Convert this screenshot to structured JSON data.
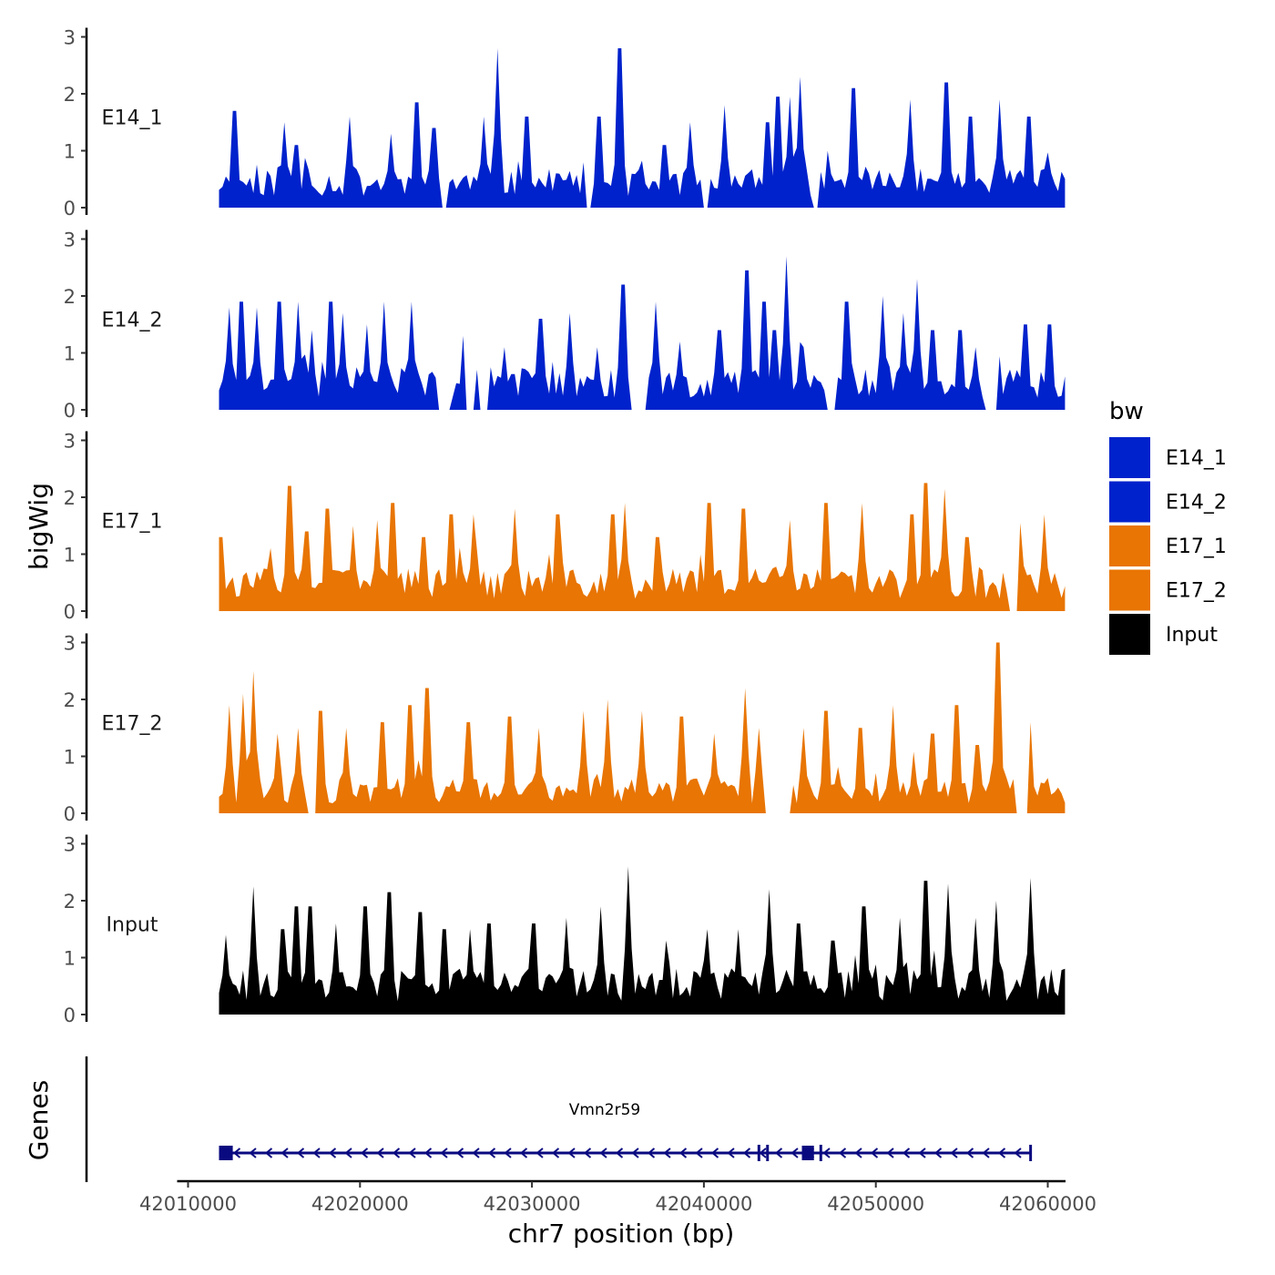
{
  "chart_data": {
    "type": "area",
    "ylabel": "bigWig",
    "xlabel": "chr7 position (bp)",
    "genes_label": "Genes",
    "xlim": [
      42008000,
      42064000
    ],
    "ylim": [
      0,
      3
    ],
    "x_ticks": [
      42010000,
      42020000,
      42030000,
      42040000,
      42050000,
      42060000
    ],
    "x_tick_labels": [
      "42010000",
      "42020000",
      "42030000",
      "42040000",
      "42050000",
      "42060000"
    ],
    "y_ticks": [
      0,
      1,
      2,
      3
    ],
    "y_tick_labels": [
      "0",
      "1",
      "2",
      "3"
    ],
    "data_range": [
      42011800,
      42061000
    ],
    "legend": {
      "title": "bw",
      "position": "right",
      "entries": [
        {
          "label": "E14_1",
          "color": "#0022CC"
        },
        {
          "label": "E14_2",
          "color": "#0022CC"
        },
        {
          "label": "E17_1",
          "color": "#E87504"
        },
        {
          "label": "E17_2",
          "color": "#E87504"
        },
        {
          "label": "Input",
          "color": "#000000"
        }
      ]
    },
    "series": [
      {
        "name": "E14_1",
        "color": "#0022CC",
        "mean": 0.55,
        "seed": 11,
        "gaps": [
          [
            42024800,
            42025100
          ],
          [
            42033200,
            42033500
          ],
          [
            42039900,
            42040300
          ],
          [
            42046300,
            42046700
          ]
        ],
        "peaks": [
          [
            42012700,
            1.7
          ],
          [
            42015600,
            1.5
          ],
          [
            42016300,
            1.1
          ],
          [
            42019400,
            1.6
          ],
          [
            42021800,
            1.3
          ],
          [
            42023300,
            1.85
          ],
          [
            42024300,
            1.4
          ],
          [
            42027200,
            1.6
          ],
          [
            42028000,
            2.8
          ],
          [
            42029700,
            1.6
          ],
          [
            42033900,
            1.6
          ],
          [
            42035100,
            2.8
          ],
          [
            42037700,
            1.1
          ],
          [
            42039200,
            1.5
          ],
          [
            42040000,
            1.1
          ],
          [
            42041200,
            1.8
          ],
          [
            42043700,
            1.5
          ],
          [
            42044300,
            1.95
          ],
          [
            42045000,
            1.95
          ],
          [
            42045600,
            2.3
          ],
          [
            42048700,
            2.1
          ],
          [
            42052000,
            1.9
          ],
          [
            42054100,
            2.2
          ],
          [
            42055500,
            1.6
          ],
          [
            42057200,
            1.9
          ],
          [
            42058900,
            1.6
          ]
        ]
      },
      {
        "name": "E14_2",
        "color": "#0022CC",
        "mean": 0.6,
        "seed": 23,
        "gaps": [
          [
            42024500,
            42025200
          ],
          [
            42026200,
            42026700
          ],
          [
            42027000,
            42027500
          ],
          [
            42035800,
            42036600
          ],
          [
            42047200,
            42047700
          ],
          [
            42056300,
            42057000
          ]
        ],
        "peaks": [
          [
            42012400,
            1.8
          ],
          [
            42013100,
            1.9
          ],
          [
            42014000,
            1.8
          ],
          [
            42015300,
            1.9
          ],
          [
            42016400,
            1.9
          ],
          [
            42017200,
            1.4
          ],
          [
            42018300,
            1.9
          ],
          [
            42019000,
            1.7
          ],
          [
            42020400,
            1.5
          ],
          [
            42021400,
            1.9
          ],
          [
            42023000,
            1.9
          ],
          [
            42026100,
            1.3
          ],
          [
            42028400,
            1.1
          ],
          [
            42030500,
            1.6
          ],
          [
            42032200,
            1.7
          ],
          [
            42033800,
            1.1
          ],
          [
            42035300,
            2.2
          ],
          [
            42037200,
            1.9
          ],
          [
            42038600,
            1.2
          ],
          [
            42040900,
            1.4
          ],
          [
            42042500,
            2.45
          ],
          [
            42043500,
            1.9
          ],
          [
            42044100,
            1.4
          ],
          [
            42044800,
            2.7
          ],
          [
            42045700,
            1.1
          ],
          [
            42048300,
            1.9
          ],
          [
            42050400,
            2.0
          ],
          [
            42051600,
            1.7
          ],
          [
            42052400,
            2.3
          ],
          [
            42053300,
            1.4
          ],
          [
            42054900,
            1.4
          ],
          [
            42055800,
            1.1
          ],
          [
            42058700,
            1.5
          ],
          [
            42060100,
            1.5
          ]
        ]
      },
      {
        "name": "E17_1",
        "color": "#E87504",
        "mean": 0.6,
        "seed": 37,
        "gaps": [
          [
            42057800,
            42058300
          ]
        ],
        "peaks": [
          [
            42011900,
            1.3
          ],
          [
            42015900,
            2.2
          ],
          [
            42016900,
            1.4
          ],
          [
            42018100,
            1.8
          ],
          [
            42019600,
            1.5
          ],
          [
            42021000,
            1.6
          ],
          [
            42021900,
            1.9
          ],
          [
            42023700,
            1.3
          ],
          [
            42025300,
            1.7
          ],
          [
            42026600,
            1.7
          ],
          [
            42029000,
            1.8
          ],
          [
            42031500,
            1.7
          ],
          [
            42034700,
            1.7
          ],
          [
            42035400,
            1.9
          ],
          [
            42037300,
            1.3
          ],
          [
            42040300,
            1.9
          ],
          [
            42042300,
            1.8
          ],
          [
            42045000,
            1.6
          ],
          [
            42047100,
            1.9
          ],
          [
            42049200,
            1.9
          ],
          [
            42052100,
            1.7
          ],
          [
            42052900,
            2.25
          ],
          [
            42054000,
            2.15
          ],
          [
            42055300,
            1.3
          ],
          [
            42058400,
            1.55
          ],
          [
            42059800,
            1.7
          ]
        ]
      },
      {
        "name": "E17_2",
        "color": "#E87504",
        "mean": 0.5,
        "seed": 49,
        "gaps": [
          [
            42017000,
            42017500
          ],
          [
            42043600,
            42045000
          ],
          [
            42058100,
            42058800
          ]
        ],
        "peaks": [
          [
            42012400,
            1.9
          ],
          [
            42013200,
            2.1
          ],
          [
            42013800,
            2.5
          ],
          [
            42015200,
            1.4
          ],
          [
            42016400,
            1.5
          ],
          [
            42017700,
            1.8
          ],
          [
            42019200,
            1.5
          ],
          [
            42021300,
            1.6
          ],
          [
            42022900,
            1.9
          ],
          [
            42023900,
            2.2
          ],
          [
            42026300,
            1.6
          ],
          [
            42028700,
            1.7
          ],
          [
            42030400,
            1.5
          ],
          [
            42033000,
            1.8
          ],
          [
            42034400,
            2.0
          ],
          [
            42036400,
            1.8
          ],
          [
            42038700,
            1.7
          ],
          [
            42040600,
            1.4
          ],
          [
            42042400,
            2.2
          ],
          [
            42043200,
            1.5
          ],
          [
            42045800,
            1.5
          ],
          [
            42047100,
            1.8
          ],
          [
            42049100,
            1.5
          ],
          [
            42051000,
            1.9
          ],
          [
            42053300,
            1.4
          ],
          [
            42054700,
            1.9
          ],
          [
            42055900,
            1.2
          ],
          [
            42057100,
            3.0
          ],
          [
            42058900,
            1.6
          ]
        ]
      },
      {
        "name": "Input",
        "color": "#000000",
        "mean": 0.65,
        "seed": 61,
        "gaps": [],
        "peaks": [
          [
            42012200,
            1.4
          ],
          [
            42013800,
            2.25
          ],
          [
            42015500,
            1.5
          ],
          [
            42016300,
            1.9
          ],
          [
            42017100,
            1.9
          ],
          [
            42018600,
            1.6
          ],
          [
            42020300,
            1.9
          ],
          [
            42021700,
            2.15
          ],
          [
            42023500,
            1.8
          ],
          [
            42024900,
            1.5
          ],
          [
            42026400,
            1.5
          ],
          [
            42027500,
            1.6
          ],
          [
            42030100,
            1.6
          ],
          [
            42032000,
            1.7
          ],
          [
            42034000,
            1.9
          ],
          [
            42035600,
            2.6
          ],
          [
            42037800,
            1.3
          ],
          [
            42040200,
            1.5
          ],
          [
            42042000,
            1.5
          ],
          [
            42043800,
            2.2
          ],
          [
            42045500,
            1.6
          ],
          [
            42047500,
            1.3
          ],
          [
            42049300,
            1.9
          ],
          [
            42051400,
            1.7
          ],
          [
            42052900,
            2.35
          ],
          [
            42054200,
            2.3
          ],
          [
            42055800,
            1.7
          ],
          [
            42057000,
            2.0
          ],
          [
            42059000,
            2.4
          ]
        ]
      }
    ],
    "gene": {
      "name": "Vmn2r59",
      "strand": "-",
      "start": 42011800,
      "end": 42059000,
      "color": "#0A0A80",
      "thick_blocks": [
        [
          42011800,
          42012600
        ],
        [
          42045700,
          42046400
        ]
      ],
      "tick_marks": [
        42043200,
        42043700,
        42046800
      ]
    }
  }
}
